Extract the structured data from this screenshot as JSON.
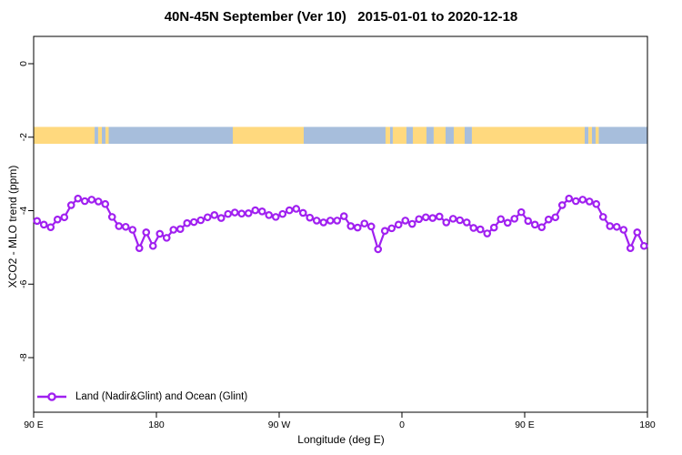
{
  "chart_data": {
    "type": "line",
    "title": "40N-45N September (Ver 10)   2015-01-01 to 2020-12-18",
    "xlabel": "Longitude (deg E)",
    "ylabel": "XCO2 - MLO trend (ppm)",
    "grid": false,
    "x_axis": {
      "display_deg_range": [
        90,
        540
      ],
      "ticks": [
        {
          "deg": 90,
          "label": "90 E"
        },
        {
          "deg": 180,
          "label": "180"
        },
        {
          "deg": 270,
          "label": "90 W"
        },
        {
          "deg": 360,
          "label": "0"
        },
        {
          "deg": 450,
          "label": "90 E"
        },
        {
          "deg": 540,
          "label": "180"
        }
      ]
    },
    "y_axis": {
      "range_ppm": [
        -9.5,
        0.75
      ],
      "ticks": [
        {
          "v": 0,
          "label": "0"
        },
        {
          "v": -2,
          "label": "-2"
        },
        {
          "v": -4,
          "label": "-4"
        },
        {
          "v": -6,
          "label": "-6"
        },
        {
          "v": -8,
          "label": "-8"
        }
      ]
    },
    "legend": {
      "position": "bottom-left",
      "entries": [
        {
          "label": "Land (Nadir&Glint) and Ocean (Glint)",
          "color": "#A020F0",
          "marker": "open-circle-on-line"
        }
      ]
    },
    "land_ocean_band": {
      "description": "land/ocean mask strip drawn at about -2 ppm",
      "y_top_ppm": -1.72,
      "y_bottom_ppm": -2.18,
      "land_color": "#FFD97E",
      "ocean_color": "#A7BEDC",
      "segments_display_deg": [
        [
          90,
          134.7,
          "land"
        ],
        [
          134.7,
          137.3,
          "ocean"
        ],
        [
          137.3,
          140,
          "land"
        ],
        [
          140,
          142.7,
          "ocean"
        ],
        [
          142.7,
          145,
          "land"
        ],
        [
          145,
          236,
          "ocean"
        ],
        [
          236,
          288,
          "land"
        ],
        [
          288,
          348,
          "ocean"
        ],
        [
          348,
          351.3,
          "land"
        ],
        [
          351.3,
          353.3,
          "ocean"
        ],
        [
          353.3,
          363.3,
          "land"
        ],
        [
          363.3,
          368,
          "ocean"
        ],
        [
          368,
          378,
          "land"
        ],
        [
          378,
          383.3,
          "ocean"
        ],
        [
          383.3,
          392,
          "land"
        ],
        [
          392,
          398,
          "ocean"
        ],
        [
          398,
          406,
          "land"
        ],
        [
          406,
          411.3,
          "ocean"
        ],
        [
          411.3,
          494,
          "land"
        ],
        [
          494,
          496.7,
          "ocean"
        ],
        [
          496.7,
          499.3,
          "land"
        ],
        [
          499.3,
          502,
          "ocean"
        ],
        [
          502,
          504.3,
          "land"
        ],
        [
          504.3,
          540,
          "ocean"
        ]
      ]
    },
    "series": [
      {
        "name": "Land (Nadir&Glint) and Ocean (Glint)",
        "color": "#A020F0",
        "marker": "open-circle",
        "x_start_display_deg": 92.5,
        "x_step_deg": 5,
        "n_points": 90,
        "values_ppm": [
          -4.28,
          -4.38,
          -4.45,
          -4.24,
          -4.18,
          -3.85,
          -3.67,
          -3.74,
          -3.7,
          -3.75,
          -3.82,
          -4.17,
          -4.42,
          -4.44,
          -4.52,
          -5.02,
          -4.59,
          -4.96,
          -4.63,
          -4.74,
          -4.52,
          -4.5,
          -4.34,
          -4.31,
          -4.26,
          -4.18,
          -4.12,
          -4.2,
          -4.09,
          -4.05,
          -4.08,
          -4.07,
          -3.99,
          -4.02,
          -4.12,
          -4.17,
          -4.09,
          -3.99,
          -3.95,
          -4.06,
          -4.19,
          -4.27,
          -4.32,
          -4.27,
          -4.27,
          -4.15,
          -4.42,
          -4.46,
          -4.35,
          -4.43,
          -5.05,
          -4.55,
          -4.48,
          -4.38,
          -4.27,
          -4.36,
          -4.23,
          -4.18,
          -4.2,
          -4.16,
          -4.32,
          -4.22,
          -4.26,
          -4.32,
          -4.47,
          -4.51,
          -4.62,
          -4.46,
          -4.23,
          -4.33,
          -4.22,
          -4.04,
          -4.28,
          -4.38,
          -4.45,
          -4.24,
          -4.18,
          -3.85,
          -3.67,
          -3.74,
          -3.7,
          -3.75,
          -3.82,
          -4.17,
          -4.42,
          -4.44,
          -4.52,
          -5.02,
          -4.59,
          -4.96
        ]
      }
    ]
  }
}
